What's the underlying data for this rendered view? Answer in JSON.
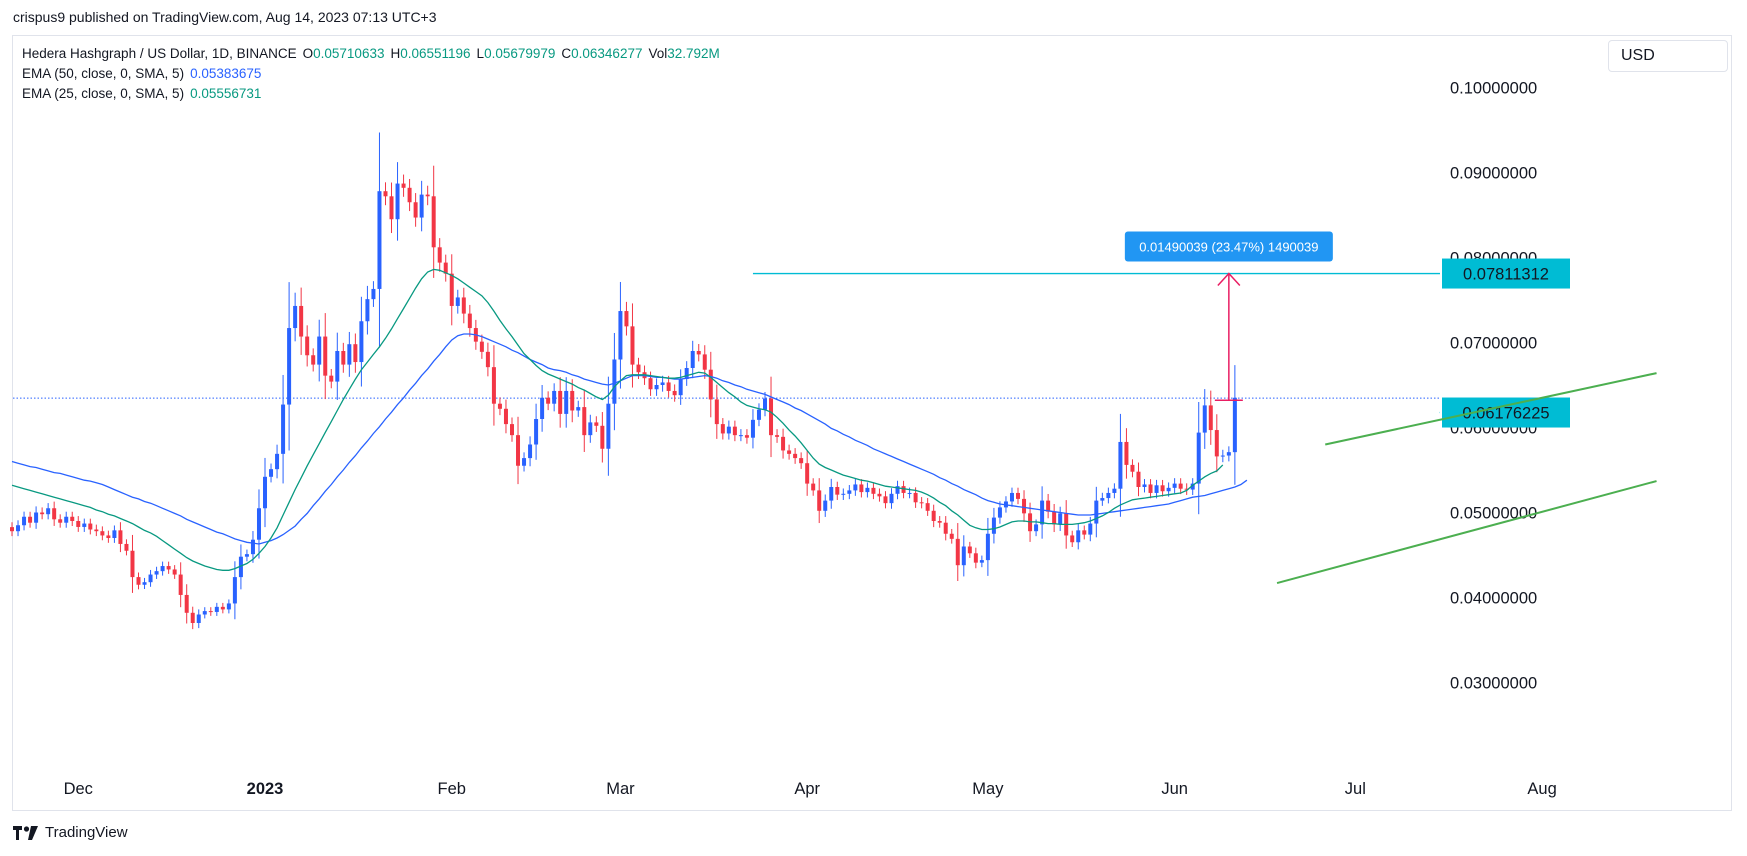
{
  "header": {
    "published": "crispus9 published on TradingView.com, Aug 14, 2023 07:13 UTC+3"
  },
  "legend": {
    "symbol": "Hedera Hashgraph / US Dollar, 1D, BINANCE",
    "o_label": "O",
    "o_value": "0.05710633",
    "h_label": "H",
    "h_value": "0.06551196",
    "l_label": "L",
    "l_value": "0.05679979",
    "c_label": "C",
    "c_value": "0.06346277",
    "vol_label": "Vol",
    "vol_value": "32.792M",
    "ema50_label": "EMA (50, close, 0, SMA, 5)",
    "ema50_value": "0.05383675",
    "ema25_label": "EMA (25, close, 0, SMA, 5)",
    "ema25_value": "0.05556731"
  },
  "currency_button": "USD",
  "brand": "TradingView",
  "colors": {
    "up": "#2962ff",
    "down": "#f23645",
    "ema50": "#2962ff",
    "ema25": "#089981",
    "trendline": "#4caf50",
    "level_line": "#00bcd4",
    "measure": "#e91e63",
    "measure_label_bg": "#2196f3",
    "last_price_line": "#2962ff"
  },
  "chart_data": {
    "type": "candlestick",
    "title": "Hedera Hashgraph / US Dollar, 1D, BINANCE",
    "y_range": [
      0.025,
      0.105
    ],
    "y_ticks": [
      "0.10000000",
      "0.09000000",
      "0.08000000",
      "0.07000000",
      "0.06000000",
      "0.05000000",
      "0.04000000",
      "0.03000000"
    ],
    "y_tick_values": [
      0.1,
      0.09,
      0.08,
      0.07,
      0.06,
      0.05,
      0.04,
      0.03
    ],
    "x_start_date": "2022-11-20",
    "x_end_date": "2023-08-14",
    "x_ticks": [
      {
        "label": "Dec",
        "date": "2022-12-01",
        "bold": false
      },
      {
        "label": "2023",
        "date": "2023-01-01",
        "bold": true
      },
      {
        "label": "Feb",
        "date": "2023-02-01",
        "bold": false
      },
      {
        "label": "Mar",
        "date": "2023-03-01",
        "bold": false
      },
      {
        "label": "Apr",
        "date": "2023-04-01",
        "bold": false
      },
      {
        "label": "May",
        "date": "2023-05-01",
        "bold": false
      },
      {
        "label": "Jun",
        "date": "2023-06-01",
        "bold": false
      },
      {
        "label": "Jul",
        "date": "2023-07-01",
        "bold": false
      },
      {
        "label": "Aug",
        "date": "2023-08-01",
        "bold": false
      }
    ],
    "closes": [
      0.0478,
      0.0485,
      0.0495,
      0.0488,
      0.05,
      0.0498,
      0.0505,
      0.0492,
      0.0488,
      0.0495,
      0.049,
      0.0483,
      0.0487,
      0.048,
      0.0478,
      0.0473,
      0.047,
      0.0479,
      0.0463,
      0.0455,
      0.0424,
      0.0415,
      0.0418,
      0.0427,
      0.0431,
      0.0437,
      0.0433,
      0.0427,
      0.0403,
      0.0382,
      0.037,
      0.038,
      0.0384,
      0.0383,
      0.0389,
      0.0386,
      0.0393,
      0.0424,
      0.0448,
      0.0451,
      0.0468,
      0.0505,
      0.0542,
      0.0551,
      0.0569,
      0.0627,
      0.0717,
      0.0743,
      0.0707,
      0.0685,
      0.0674,
      0.0707,
      0.0661,
      0.0654,
      0.069,
      0.0674,
      0.0698,
      0.0677,
      0.0725,
      0.0751,
      0.0763,
      0.0878,
      0.0872,
      0.0845,
      0.0887,
      0.0882,
      0.0865,
      0.0847,
      0.0874,
      0.0872,
      0.0812,
      0.0794,
      0.0781,
      0.0743,
      0.0753,
      0.0734,
      0.0717,
      0.0701,
      0.0689,
      0.0671,
      0.0628,
      0.0622,
      0.0604,
      0.0591,
      0.0555,
      0.0564,
      0.058,
      0.061,
      0.0635,
      0.0628,
      0.0643,
      0.0616,
      0.0643,
      0.062,
      0.0624,
      0.0591,
      0.0606,
      0.0602,
      0.0575,
      0.0628,
      0.068,
      0.0737,
      0.0719,
      0.0674,
      0.0665,
      0.0658,
      0.0645,
      0.065,
      0.0653,
      0.0643,
      0.0638,
      0.0657,
      0.067,
      0.069,
      0.0686,
      0.0668,
      0.0633,
      0.0604,
      0.0593,
      0.0601,
      0.0591,
      0.0591,
      0.0588,
      0.0609,
      0.0621,
      0.0634,
      0.0591,
      0.0589,
      0.0573,
      0.0569,
      0.0564,
      0.0558,
      0.0534,
      0.0526,
      0.0502,
      0.0514,
      0.053,
      0.0521,
      0.0522,
      0.0526,
      0.0533,
      0.0524,
      0.0529,
      0.0522,
      0.0519,
      0.0511,
      0.0522,
      0.0531,
      0.0523,
      0.0523,
      0.0512,
      0.0511,
      0.0502,
      0.049,
      0.0488,
      0.0475,
      0.0469,
      0.0438,
      0.046,
      0.0452,
      0.0441,
      0.0444,
      0.0475,
      0.0494,
      0.0506,
      0.0513,
      0.0523,
      0.0516,
      0.0499,
      0.0478,
      0.0486,
      0.0514,
      0.0501,
      0.0486,
      0.0499,
      0.0473,
      0.0465,
      0.0479,
      0.0474,
      0.0487,
      0.0514,
      0.0517,
      0.0523,
      0.0528,
      0.0583,
      0.0556,
      0.0548,
      0.053,
      0.0533,
      0.0523,
      0.0532,
      0.0525,
      0.0529,
      0.0534,
      0.0528,
      0.0527,
      0.0534,
      0.0594,
      0.0626,
      0.0597,
      0.0566,
      0.0567,
      0.0571,
      0.0635
    ],
    "ema50": [
      0.056,
      0.0558,
      0.0556,
      0.0554,
      0.0553,
      0.0551,
      0.0549,
      0.0547,
      0.0546,
      0.0544,
      0.0542,
      0.054,
      0.0538,
      0.0537,
      0.0535,
      0.0533,
      0.053,
      0.0527,
      0.0524,
      0.0521,
      0.0518,
      0.0516,
      0.0513,
      0.0511,
      0.0508,
      0.0505,
      0.0502,
      0.0499,
      0.0496,
      0.0492,
      0.0489,
      0.0486,
      0.0483,
      0.048,
      0.0477,
      0.0475,
      0.0472,
      0.0469,
      0.0467,
      0.0465,
      0.0464,
      0.0463,
      0.0465,
      0.0467,
      0.047,
      0.0474,
      0.0479,
      0.0484,
      0.0492,
      0.0499,
      0.0508,
      0.0516,
      0.0525,
      0.0533,
      0.0542,
      0.055,
      0.0559,
      0.0567,
      0.0576,
      0.0584,
      0.0593,
      0.0601,
      0.061,
      0.0618,
      0.0627,
      0.0635,
      0.0644,
      0.0652,
      0.0661,
      0.0669,
      0.0678,
      0.0686,
      0.0695,
      0.0703,
      0.0708,
      0.071,
      0.071,
      0.0709,
      0.0707,
      0.0704,
      0.0701,
      0.0698,
      0.0695,
      0.0691,
      0.0688,
      0.0684,
      0.068,
      0.0677,
      0.0674,
      0.067,
      0.0668,
      0.0667,
      0.0665,
      0.0662,
      0.066,
      0.0657,
      0.0655,
      0.0653,
      0.0651,
      0.065,
      0.0652,
      0.0655,
      0.0658,
      0.0661,
      0.0661,
      0.0661,
      0.066,
      0.0659,
      0.0659,
      0.0658,
      0.0657,
      0.0657,
      0.0658,
      0.0659,
      0.066,
      0.0661,
      0.066,
      0.0658,
      0.0655,
      0.0653,
      0.065,
      0.0648,
      0.0645,
      0.0643,
      0.0641,
      0.0639,
      0.0636,
      0.0633,
      0.063,
      0.0627,
      0.0623,
      0.062,
      0.0616,
      0.0612,
      0.0608,
      0.0604,
      0.0599,
      0.0596,
      0.0592,
      0.0589,
      0.0585,
      0.0582,
      0.0579,
      0.0575,
      0.0572,
      0.0569,
      0.0566,
      0.0563,
      0.056,
      0.0557,
      0.0554,
      0.0551,
      0.0548,
      0.0545,
      0.0541,
      0.0538,
      0.0534,
      0.0531,
      0.0527,
      0.0524,
      0.0521,
      0.0517,
      0.0514,
      0.0512,
      0.051,
      0.0509,
      0.0508,
      0.0507,
      0.0506,
      0.0505,
      0.0504,
      0.0503,
      0.0502,
      0.0501,
      0.05,
      0.0499,
      0.0498,
      0.0497,
      0.0497,
      0.0497,
      0.0498,
      0.0499,
      0.05,
      0.0501,
      0.0502,
      0.0503,
      0.0504,
      0.0505,
      0.0506,
      0.0507,
      0.0508,
      0.0509,
      0.051,
      0.0512,
      0.0514,
      0.0516,
      0.0518,
      0.0519,
      0.052,
      0.0522,
      0.0524,
      0.0526,
      0.0528,
      0.053,
      0.0533,
      0.0538
    ],
    "ema25": [
      0.0532,
      0.053,
      0.0528,
      0.0526,
      0.0524,
      0.0522,
      0.052,
      0.0518,
      0.0516,
      0.0514,
      0.0512,
      0.051,
      0.0508,
      0.0506,
      0.0503,
      0.0501,
      0.0498,
      0.0496,
      0.0493,
      0.049,
      0.0487,
      0.0483,
      0.0479,
      0.0476,
      0.0472,
      0.0467,
      0.0462,
      0.0457,
      0.0452,
      0.0447,
      0.0443,
      0.044,
      0.0437,
      0.0435,
      0.0433,
      0.0432,
      0.0432,
      0.0434,
      0.0437,
      0.044,
      0.0445,
      0.0452,
      0.046,
      0.047,
      0.0482,
      0.0497,
      0.0512,
      0.0527,
      0.0541,
      0.0555,
      0.0568,
      0.0581,
      0.0594,
      0.0607,
      0.062,
      0.0633,
      0.0645,
      0.0657,
      0.0668,
      0.0677,
      0.0686,
      0.0695,
      0.0705,
      0.0716,
      0.0728,
      0.074,
      0.0752,
      0.0764,
      0.0775,
      0.0783,
      0.0786,
      0.0785,
      0.0782,
      0.0779,
      0.0775,
      0.077,
      0.0765,
      0.076,
      0.0755,
      0.0747,
      0.0737,
      0.0726,
      0.0716,
      0.0707,
      0.0697,
      0.0687,
      0.068,
      0.0673,
      0.0667,
      0.0663,
      0.066,
      0.0657,
      0.0654,
      0.0651,
      0.0647,
      0.0644,
      0.064,
      0.0636,
      0.0633,
      0.0638,
      0.0648,
      0.0655,
      0.0661,
      0.0662,
      0.0662,
      0.0662,
      0.0661,
      0.066,
      0.0659,
      0.0658,
      0.0658,
      0.0659,
      0.0661,
      0.0663,
      0.0665,
      0.0664,
      0.0659,
      0.0653,
      0.0647,
      0.0641,
      0.0636,
      0.063,
      0.0626,
      0.0624,
      0.0622,
      0.0621,
      0.0618,
      0.0612,
      0.0605,
      0.0597,
      0.059,
      0.0582,
      0.0573,
      0.0564,
      0.0557,
      0.0553,
      0.055,
      0.0547,
      0.0544,
      0.0542,
      0.054,
      0.0538,
      0.0537,
      0.0535,
      0.0533,
      0.0531,
      0.053,
      0.0529,
      0.0528,
      0.0527,
      0.0526,
      0.0524,
      0.0521,
      0.0517,
      0.0512,
      0.0508,
      0.0502,
      0.0497,
      0.0491,
      0.0485,
      0.0482,
      0.048,
      0.048,
      0.0481,
      0.0483,
      0.0486,
      0.0489,
      0.049,
      0.049,
      0.0489,
      0.0489,
      0.0488,
      0.0487,
      0.0487,
      0.0486,
      0.0486,
      0.0486,
      0.0487,
      0.0488,
      0.049,
      0.0493,
      0.0496,
      0.05,
      0.0505,
      0.0509,
      0.0512,
      0.0515,
      0.0516,
      0.0517,
      0.0518,
      0.0519,
      0.052,
      0.0521,
      0.0522,
      0.0523,
      0.0526,
      0.0532,
      0.0537,
      0.0542,
      0.0546,
      0.0549,
      0.0556
    ],
    "annotations": {
      "resistance_level": {
        "value": 0.07811312,
        "label": "0.07811312",
        "from_date": "2023-03-23"
      },
      "breakout_level": {
        "value": 0.06176225,
        "label": "0.06176225",
        "from_date": "2023-07-15"
      },
      "last_price": {
        "value": 0.06346277
      },
      "measure": {
        "from": 0.06321273,
        "to": 0.07811312,
        "date": "2023-06-10",
        "label": "0.01490039 (23.47%) 1490039"
      },
      "channel_upper": {
        "from": {
          "date": "2023-06-26",
          "value": 0.058
        },
        "to": {
          "date": "2023-08-20",
          "value": 0.0664
        }
      },
      "channel_lower": {
        "from": {
          "date": "2023-06-18",
          "value": 0.0417
        },
        "to": {
          "date": "2023-08-20",
          "value": 0.0537
        }
      }
    }
  }
}
